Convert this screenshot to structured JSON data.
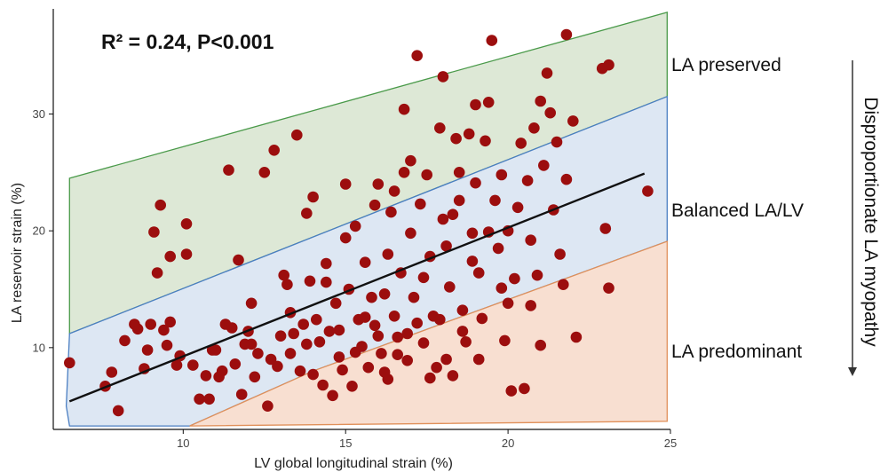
{
  "chart_data": {
    "type": "scatter",
    "title": "",
    "stats_label": "R² = 0.24, P<0.001",
    "xlabel": "LV global longitudinal strain (%)",
    "ylabel": "LA reservoir strain (%)",
    "xlim": [
      6,
      25
    ],
    "ylim": [
      3,
      39
    ],
    "xticks": [
      10,
      15,
      20,
      25
    ],
    "yticks": [
      10,
      20,
      30
    ],
    "grid": false,
    "regression_line": {
      "x": [
        6.5,
        24.2
      ],
      "y": [
        5.4,
        24.9
      ]
    },
    "regions": [
      {
        "name": "LA preserved",
        "color": "#dde8d6",
        "edge": "#4a9a4a",
        "polygon": [
          [
            6.5,
            11.2
          ],
          [
            6.5,
            24.5
          ],
          [
            24.9,
            38.7
          ],
          [
            24.9,
            31.5
          ]
        ]
      },
      {
        "name": "Balanced LA/LV",
        "color": "#dde7f3",
        "edge": "#4a7ec2",
        "polygon": [
          [
            6.5,
            11.2
          ],
          [
            24.9,
            31.5
          ],
          [
            24.9,
            19.1
          ],
          [
            14.0,
            8.0
          ],
          [
            10.2,
            3.3
          ],
          [
            6.5,
            3.3
          ],
          [
            6.4,
            5.0
          ]
        ]
      },
      {
        "name": "LA predominant",
        "color": "#f8dfd1",
        "edge": "#e0905a",
        "polygon": [
          [
            10.2,
            3.3
          ],
          [
            14.0,
            8.0
          ],
          [
            24.9,
            19.1
          ],
          [
            24.9,
            3.7
          ]
        ]
      }
    ],
    "region_labels": [
      "LA preserved",
      "Balanced LA/LV",
      "LA predominant"
    ],
    "side_label": "Disproportionate LA myopathy",
    "point_color": "#9c0e0e",
    "points": [
      [
        6.5,
        8.7
      ],
      [
        7.6,
        6.7
      ],
      [
        7.8,
        7.9
      ],
      [
        8.0,
        4.6
      ],
      [
        8.2,
        10.6
      ],
      [
        8.6,
        11.6
      ],
      [
        8.8,
        8.2
      ],
      [
        8.9,
        9.8
      ],
      [
        9.0,
        12.0
      ],
      [
        9.1,
        19.9
      ],
      [
        9.2,
        16.4
      ],
      [
        9.3,
        22.2
      ],
      [
        9.4,
        11.5
      ],
      [
        9.5,
        10.2
      ],
      [
        9.6,
        12.2
      ],
      [
        9.6,
        17.8
      ],
      [
        9.8,
        8.5
      ],
      [
        9.9,
        9.3
      ],
      [
        10.1,
        18.0
      ],
      [
        10.1,
        20.6
      ],
      [
        10.3,
        8.5
      ],
      [
        10.5,
        5.6
      ],
      [
        10.7,
        7.6
      ],
      [
        10.8,
        5.6
      ],
      [
        10.9,
        9.8
      ],
      [
        11.1,
        7.5
      ],
      [
        11.2,
        8.0
      ],
      [
        11.3,
        12.0
      ],
      [
        11.4,
        25.2
      ],
      [
        11.5,
        11.7
      ],
      [
        11.6,
        8.6
      ],
      [
        11.7,
        17.5
      ],
      [
        11.8,
        6.0
      ],
      [
        11.9,
        10.3
      ],
      [
        12.0,
        11.4
      ],
      [
        12.1,
        10.3
      ],
      [
        12.2,
        7.5
      ],
      [
        12.3,
        9.5
      ],
      [
        12.5,
        25.0
      ],
      [
        12.6,
        5.0
      ],
      [
        12.8,
        26.9
      ],
      [
        12.9,
        8.4
      ],
      [
        13.0,
        11.0
      ],
      [
        13.1,
        16.2
      ],
      [
        13.2,
        15.4
      ],
      [
        13.3,
        9.5
      ],
      [
        13.4,
        11.2
      ],
      [
        13.5,
        28.2
      ],
      [
        13.6,
        8.0
      ],
      [
        13.7,
        12.0
      ],
      [
        13.8,
        21.5
      ],
      [
        13.9,
        15.7
      ],
      [
        14.0,
        22.9
      ],
      [
        14.1,
        12.4
      ],
      [
        14.2,
        10.5
      ],
      [
        14.3,
        6.8
      ],
      [
        14.4,
        17.2
      ],
      [
        14.5,
        11.4
      ],
      [
        14.6,
        5.9
      ],
      [
        14.7,
        13.8
      ],
      [
        14.8,
        11.5
      ],
      [
        14.9,
        8.1
      ],
      [
        15.0,
        19.4
      ],
      [
        15.0,
        24.0
      ],
      [
        15.1,
        15.0
      ],
      [
        15.2,
        6.7
      ],
      [
        15.3,
        20.4
      ],
      [
        15.4,
        12.4
      ],
      [
        15.5,
        10.1
      ],
      [
        15.6,
        17.3
      ],
      [
        15.7,
        8.3
      ],
      [
        15.8,
        14.3
      ],
      [
        15.9,
        22.2
      ],
      [
        16.0,
        11.0
      ],
      [
        16.0,
        24.0
      ],
      [
        16.1,
        9.5
      ],
      [
        16.2,
        7.9
      ],
      [
        16.3,
        18.0
      ],
      [
        16.4,
        21.6
      ],
      [
        16.5,
        12.7
      ],
      [
        16.5,
        23.4
      ],
      [
        16.6,
        9.4
      ],
      [
        16.7,
        16.4
      ],
      [
        16.8,
        30.4
      ],
      [
        16.8,
        25.0
      ],
      [
        16.9,
        11.2
      ],
      [
        17.0,
        19.8
      ],
      [
        17.0,
        26.0
      ],
      [
        17.1,
        14.3
      ],
      [
        17.2,
        35.0
      ],
      [
        17.3,
        22.3
      ],
      [
        17.4,
        10.4
      ],
      [
        17.5,
        24.8
      ],
      [
        17.6,
        17.8
      ],
      [
        17.7,
        12.7
      ],
      [
        17.8,
        8.3
      ],
      [
        17.9,
        28.8
      ],
      [
        18.0,
        33.2
      ],
      [
        18.0,
        21.0
      ],
      [
        18.1,
        18.7
      ],
      [
        18.2,
        15.2
      ],
      [
        18.3,
        7.6
      ],
      [
        18.4,
        27.9
      ],
      [
        18.5,
        25.0
      ],
      [
        18.5,
        22.6
      ],
      [
        18.6,
        13.2
      ],
      [
        18.7,
        10.5
      ],
      [
        18.8,
        28.3
      ],
      [
        18.9,
        19.8
      ],
      [
        19.0,
        30.8
      ],
      [
        19.0,
        24.1
      ],
      [
        19.1,
        16.4
      ],
      [
        19.2,
        12.5
      ],
      [
        19.3,
        27.7
      ],
      [
        19.4,
        31.0
      ],
      [
        19.5,
        36.3
      ],
      [
        19.6,
        22.6
      ],
      [
        19.7,
        18.5
      ],
      [
        19.8,
        24.8
      ],
      [
        19.9,
        10.6
      ],
      [
        20.0,
        20.0
      ],
      [
        20.0,
        13.8
      ],
      [
        20.1,
        6.3
      ],
      [
        20.2,
        15.9
      ],
      [
        20.3,
        22.0
      ],
      [
        20.4,
        27.5
      ],
      [
        20.5,
        6.5
      ],
      [
        20.6,
        24.3
      ],
      [
        20.7,
        19.2
      ],
      [
        20.8,
        28.8
      ],
      [
        20.9,
        16.2
      ],
      [
        21.0,
        10.2
      ],
      [
        21.0,
        31.1
      ],
      [
        21.1,
        25.6
      ],
      [
        21.2,
        33.5
      ],
      [
        21.3,
        30.1
      ],
      [
        21.4,
        21.8
      ],
      [
        21.5,
        27.6
      ],
      [
        21.6,
        18.0
      ],
      [
        21.7,
        15.4
      ],
      [
        21.8,
        36.8
      ],
      [
        21.8,
        24.4
      ],
      [
        22.0,
        29.4
      ],
      [
        22.1,
        10.9
      ],
      [
        22.9,
        33.9
      ],
      [
        23.0,
        20.2
      ],
      [
        23.1,
        34.2
      ],
      [
        23.1,
        15.1
      ],
      [
        24.3,
        23.4
      ],
      [
        8.5,
        12.0
      ],
      [
        11.0,
        9.8
      ],
      [
        12.7,
        9.0
      ],
      [
        14.8,
        9.2
      ],
      [
        15.9,
        11.9
      ],
      [
        16.6,
        10.9
      ],
      [
        17.9,
        12.4
      ],
      [
        18.9,
        17.4
      ],
      [
        20.7,
        13.6
      ],
      [
        13.3,
        13.0
      ],
      [
        14.4,
        15.6
      ],
      [
        16.2,
        14.6
      ],
      [
        17.4,
        16.0
      ],
      [
        18.3,
        21.4
      ],
      [
        19.4,
        19.9
      ],
      [
        12.1,
        13.8
      ],
      [
        15.3,
        9.6
      ],
      [
        16.9,
        8.9
      ],
      [
        18.1,
        9.0
      ],
      [
        19.8,
        15.1
      ],
      [
        13.8,
        10.3
      ],
      [
        15.6,
        12.6
      ],
      [
        17.2,
        12.1
      ],
      [
        18.6,
        11.4
      ],
      [
        14.0,
        7.7
      ],
      [
        16.3,
        7.3
      ],
      [
        17.6,
        7.4
      ],
      [
        19.1,
        9.0
      ]
    ]
  }
}
